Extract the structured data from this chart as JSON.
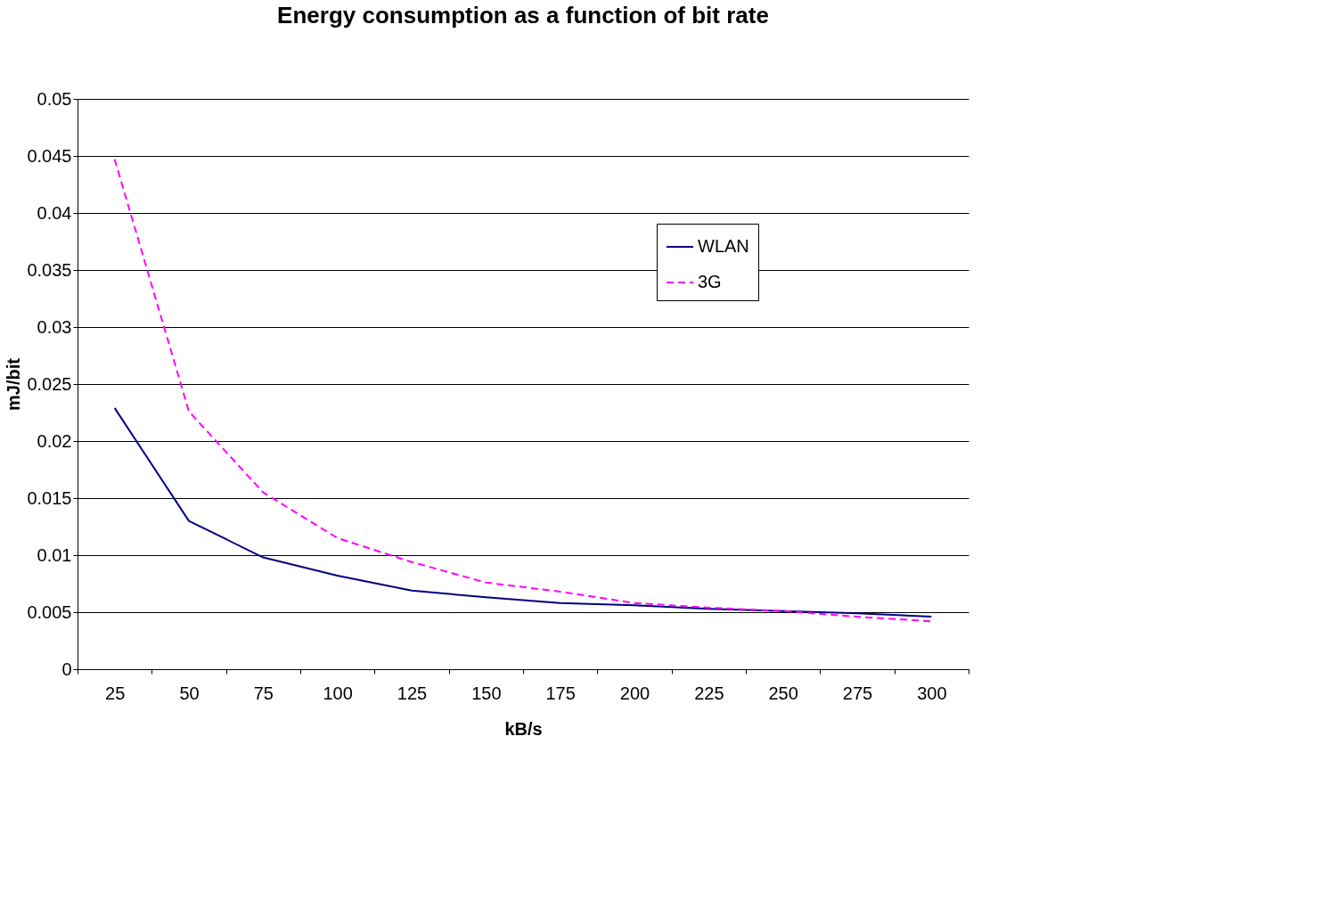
{
  "chart_data": {
    "type": "line",
    "title": "Energy consumption as a function of bit rate",
    "xlabel": "kB/s",
    "ylabel": "mJ/bit",
    "categories": [
      "25",
      "50",
      "75",
      "100",
      "125",
      "150",
      "175",
      "200",
      "225",
      "250",
      "275",
      "300"
    ],
    "series": [
      {
        "name": "WLAN",
        "color": "#000080",
        "line_style": "solid",
        "values": [
          0.0229,
          0.013,
          0.0098,
          0.0082,
          0.0069,
          0.0063,
          0.0058,
          0.0056,
          0.0053,
          0.0051,
          0.0049,
          0.0046
        ]
      },
      {
        "name": "3G",
        "color": "#ff00ff",
        "line_style": "dashed",
        "values": [
          0.0447,
          0.0226,
          0.0155,
          0.0115,
          0.0094,
          0.0076,
          0.0068,
          0.0058,
          0.0054,
          0.0051,
          0.0046,
          0.0042
        ]
      }
    ],
    "ylim": [
      0,
      0.05
    ],
    "yticks": [
      0,
      0.005,
      0.01,
      0.015,
      0.02,
      0.025,
      0.03,
      0.035,
      0.04,
      0.045,
      0.05
    ],
    "grid": "y",
    "legend": "top right",
    "marker": "none"
  }
}
